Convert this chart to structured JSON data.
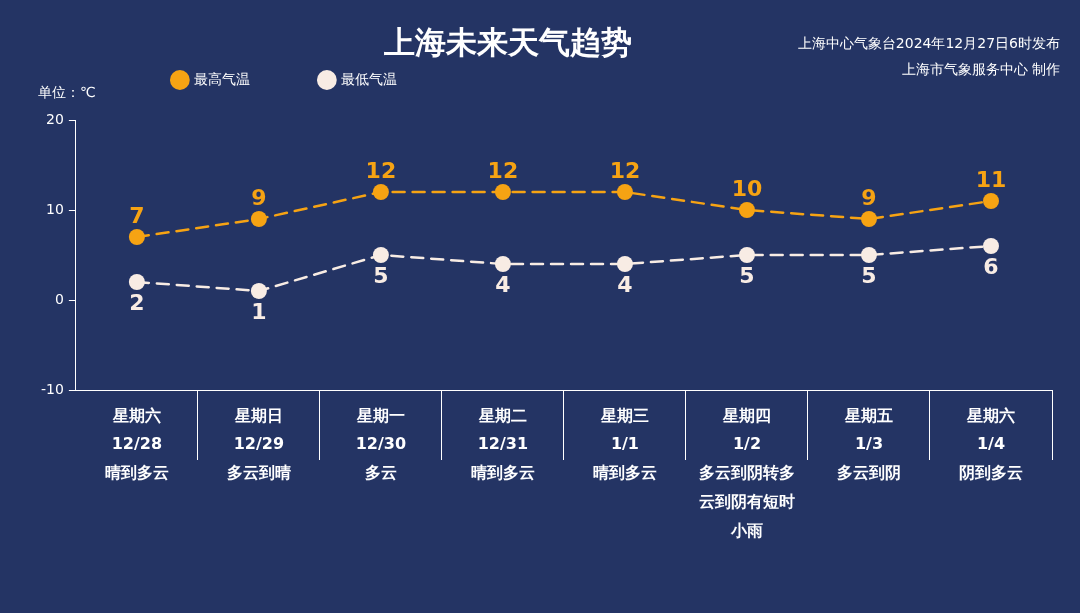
{
  "chart_data": {
    "type": "line",
    "title": "上海未来天气趋势",
    "ylabel": "单位：℃",
    "annotations": [
      "上海中心气象台2024年12月27日6时发布",
      "上海市气象服务中心 制作"
    ],
    "categories": [
      "星期六\n12/28\n晴到多云",
      "星期日\n12/29\n多云到晴",
      "星期一\n12/30\n多云",
      "星期二\n12/31\n晴到多云",
      "星期三\n1/1\n晴到多云",
      "星期四\n1/2\n多云到阴转多云到阴有短时小雨",
      "星期五\n1/3\n多云到阴",
      "星期六\n1/4\n阴到多云"
    ],
    "series": [
      {
        "name": "最高气温",
        "color": "#f6a313",
        "values": [
          7,
          9,
          12,
          12,
          12,
          10,
          9,
          11
        ]
      },
      {
        "name": "最低气温",
        "color": "#f8ece4",
        "values": [
          2,
          1,
          5,
          4,
          4,
          5,
          5,
          6
        ]
      }
    ],
    "ylim": [
      -10,
      20
    ],
    "yticks": [
      -10,
      0,
      10,
      20
    ],
    "legend": "top left",
    "marker": "circle",
    "line_style": "dashed",
    "data_labels": true
  }
}
